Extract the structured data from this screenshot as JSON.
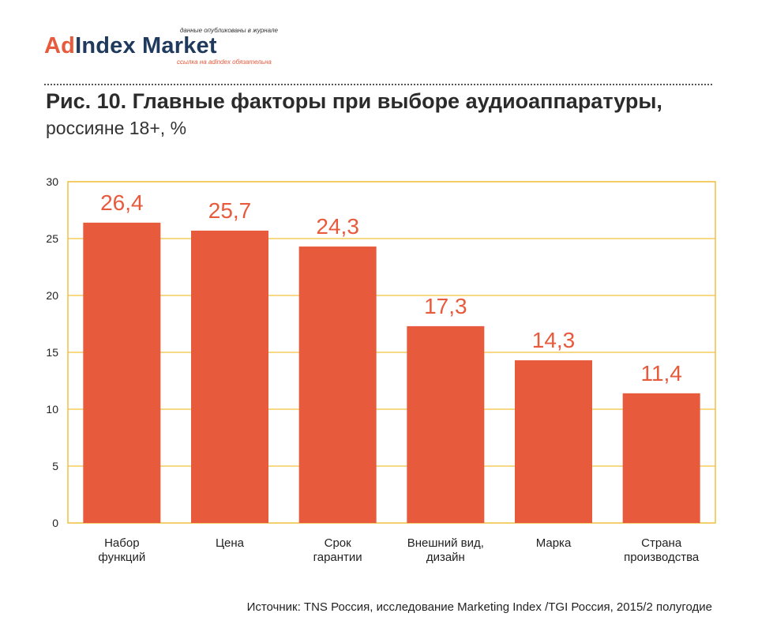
{
  "logo": {
    "top_note": "данные опубликованы в журнале",
    "brand_ad": "Ad",
    "brand_rest": "Index Market",
    "bottom_note": "ссылка на adindex обязательна"
  },
  "title": "Рис. 10. Главные факторы при выборе аудиоаппаратуры,",
  "subtitle": "россияне 18+, %",
  "source": "Источник: TNS Россия, исследование Marketing Index /TGI Россия, 2015/2 полугодие",
  "colors": {
    "bar": "#e85a3c",
    "label": "#e85a3c",
    "frame": "#f0c040",
    "grid": "#f0c040"
  },
  "chart_data": {
    "type": "bar",
    "categories": [
      [
        "Набор",
        "функций"
      ],
      [
        "Цена"
      ],
      [
        "Срок",
        "гарантии"
      ],
      [
        "Внешний вид,",
        "дизайн"
      ],
      [
        "Марка"
      ],
      [
        "Страна",
        "производства"
      ]
    ],
    "values": [
      26.4,
      25.7,
      24.3,
      17.3,
      14.3,
      11.4
    ],
    "value_labels": [
      "26,4",
      "25,7",
      "24,3",
      "17,3",
      "14,3",
      "11,4"
    ],
    "y_ticks": [
      "0",
      "5",
      "10",
      "15",
      "20",
      "25",
      "30"
    ],
    "ylim": [
      0,
      30
    ],
    "grid": true
  }
}
